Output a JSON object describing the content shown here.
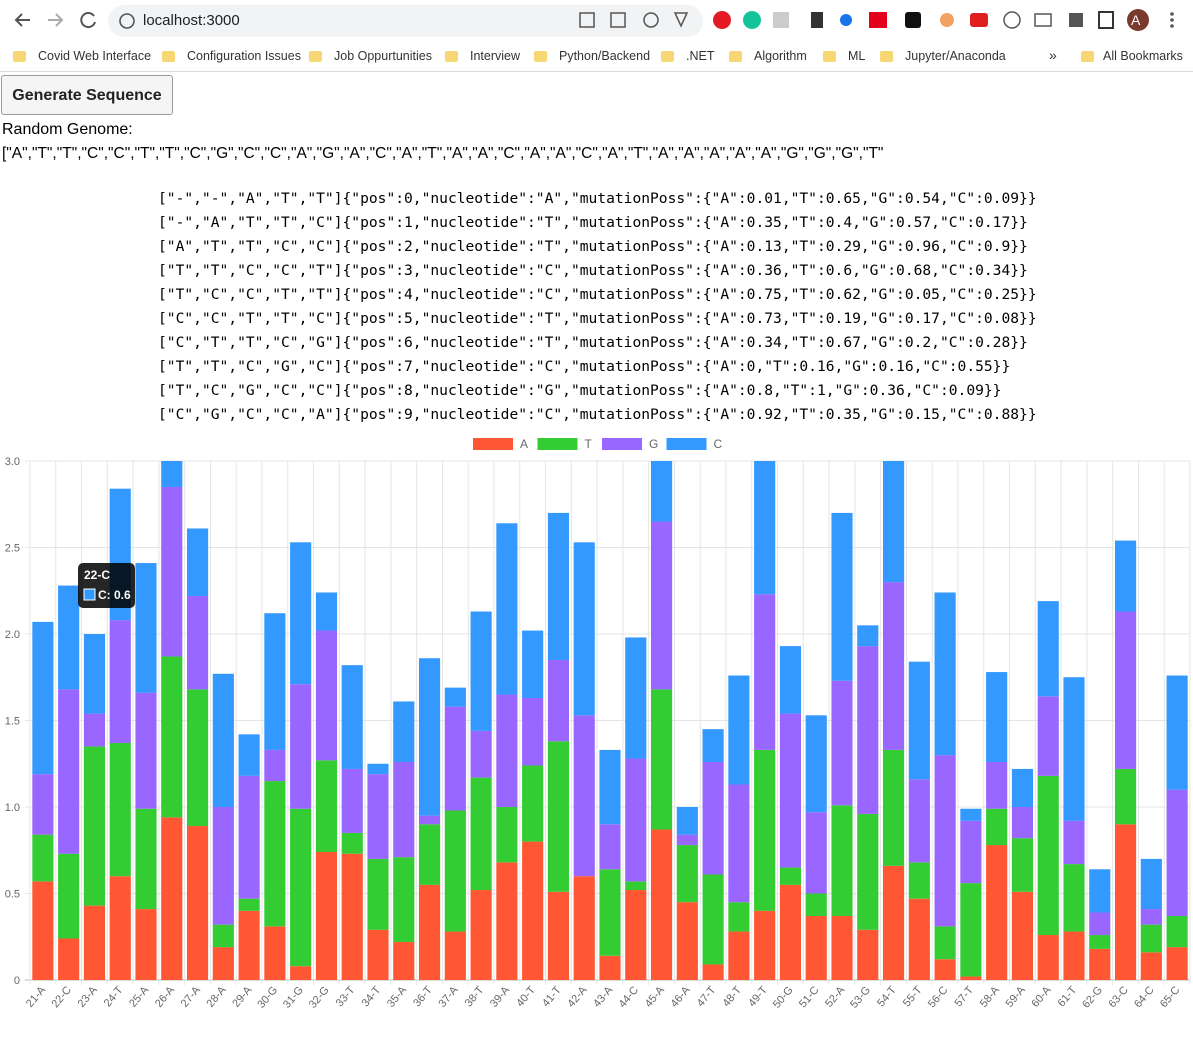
{
  "browser": {
    "url": "localhost:3000",
    "profile": "A",
    "bookmarks": [
      "Covid Web Interface",
      "Configuration Issues",
      "Job Oppurtunities",
      "Interview",
      "Python/Backend",
      ".NET",
      "Algorithm",
      "ML",
      "Jupyter/Anaconda"
    ],
    "more": "»",
    "all_bookmarks": "All Bookmarks"
  },
  "page": {
    "button": "Generate Sequence",
    "genome_label": "Random Genome:",
    "genome": "[\"A\",\"T\",\"T\",\"C\",\"C\",\"T\",\"T\",\"C\",\"G\",\"C\",\"C\",\"A\",\"G\",\"A\",\"C\",\"A\",\"T\",\"A\",\"A\",\"C\",\"A\",\"A\",\"C\",\"A\",\"T\",\"A\",\"A\",\"A\",\"A\",\"A\",\"G\",\"G\",\"G\",\"T\"",
    "lines": [
      "[\"-\",\"-\",\"A\",\"T\",\"T\"]{\"pos\":0,\"nucleotide\":\"A\",\"mutationPoss\":{\"A\":0.01,\"T\":0.65,\"G\":0.54,\"C\":0.09}}",
      "[\"-\",\"A\",\"T\",\"T\",\"C\"]{\"pos\":1,\"nucleotide\":\"T\",\"mutationPoss\":{\"A\":0.35,\"T\":0.4,\"G\":0.57,\"C\":0.17}}",
      "[\"A\",\"T\",\"T\",\"C\",\"C\"]{\"pos\":2,\"nucleotide\":\"T\",\"mutationPoss\":{\"A\":0.13,\"T\":0.29,\"G\":0.96,\"C\":0.9}}",
      "[\"T\",\"T\",\"C\",\"C\",\"T\"]{\"pos\":3,\"nucleotide\":\"C\",\"mutationPoss\":{\"A\":0.36,\"T\":0.6,\"G\":0.68,\"C\":0.34}}",
      "[\"T\",\"C\",\"C\",\"T\",\"T\"]{\"pos\":4,\"nucleotide\":\"C\",\"mutationPoss\":{\"A\":0.75,\"T\":0.62,\"G\":0.05,\"C\":0.25}}",
      "[\"C\",\"C\",\"T\",\"T\",\"C\"]{\"pos\":5,\"nucleotide\":\"T\",\"mutationPoss\":{\"A\":0.73,\"T\":0.19,\"G\":0.17,\"C\":0.08}}",
      "[\"C\",\"T\",\"T\",\"C\",\"G\"]{\"pos\":6,\"nucleotide\":\"T\",\"mutationPoss\":{\"A\":0.34,\"T\":0.67,\"G\":0.2,\"C\":0.28}}",
      "[\"T\",\"T\",\"C\",\"G\",\"C\"]{\"pos\":7,\"nucleotide\":\"C\",\"mutationPoss\":{\"A\":0,\"T\":0.16,\"G\":0.16,\"C\":0.55}}",
      "[\"T\",\"C\",\"G\",\"C\",\"C\"]{\"pos\":8,\"nucleotide\":\"G\",\"mutationPoss\":{\"A\":0.8,\"T\":1,\"G\":0.36,\"C\":0.09}}",
      "[\"C\",\"G\",\"C\",\"C\",\"A\"]{\"pos\":9,\"nucleotide\":\"C\",\"mutationPoss\":{\"A\":0.92,\"T\":0.35,\"G\":0.15,\"C\":0.88}}"
    ]
  },
  "chart_data": {
    "type": "bar",
    "stacked": true,
    "grid": true,
    "legend": "top",
    "categories": [
      "21-A",
      "22-C",
      "23-A",
      "24-T",
      "25-A",
      "26-A",
      "27-A",
      "28-A",
      "29-A",
      "30-G",
      "31-G",
      "32-G",
      "33-T",
      "34-T",
      "35-A",
      "36-T",
      "37-A",
      "38-T",
      "39-A",
      "40-T",
      "41-T",
      "42-A",
      "43-A",
      "44-C",
      "45-A",
      "46-A",
      "47-T",
      "48-T",
      "49-T",
      "50-G",
      "51-C",
      "52-A",
      "53-G",
      "54-T",
      "55-T",
      "56-C",
      "57-T",
      "58-A",
      "59-A",
      "60-A",
      "61-T",
      "62-G",
      "63-C",
      "64-C",
      "65-C"
    ],
    "series": [
      {
        "name": "A",
        "color": "#ff5733",
        "values": [
          0.57,
          0.24,
          0.43,
          0.6,
          0.41,
          0.94,
          0.89,
          0.19,
          0.4,
          0.31,
          0.08,
          0.74,
          0.73,
          0.29,
          0.22,
          0.55,
          0.28,
          0.52,
          0.68,
          0.8,
          0.51,
          0.6,
          0.14,
          0.52,
          0.87,
          0.45,
          0.09,
          0.28,
          0.4,
          0.55,
          0.37,
          0.37,
          0.29,
          0.66,
          0.47,
          0.12,
          0.02,
          0.78,
          0.51,
          0.26,
          0.28,
          0.18,
          0.9,
          0.16,
          0.19
        ]
      },
      {
        "name": "T",
        "color": "#33cc33",
        "values": [
          0.27,
          0.49,
          0.92,
          0.77,
          0.58,
          0.93,
          0.79,
          0.13,
          0.07,
          0.84,
          0.91,
          0.53,
          0.12,
          0.41,
          0.49,
          0.35,
          0.7,
          0.65,
          0.32,
          0.44,
          0.87,
          0,
          0.5,
          0.05,
          0.81,
          0.33,
          0.52,
          0.17,
          0.93,
          0.1,
          0.13,
          0.64,
          0.67,
          0.67,
          0.21,
          0.19,
          0.54,
          0.21,
          0.31,
          0.92,
          0.39,
          0.08,
          0.32,
          0.16,
          0.18
        ]
      },
      {
        "name": "G",
        "color": "#9966ff",
        "values": [
          0.35,
          0.95,
          0.19,
          0.71,
          0.67,
          0.98,
          0.54,
          0.68,
          0.71,
          0.18,
          0.72,
          0.75,
          0.37,
          0.49,
          0.55,
          0.05,
          0.6,
          0.27,
          0.65,
          0.39,
          0.47,
          0.93,
          0.26,
          0.71,
          0.97,
          0.06,
          0.65,
          0.68,
          0.9,
          0.89,
          0.47,
          0.72,
          0.97,
          0.97,
          0.48,
          0.99,
          0.36,
          0.27,
          0.18,
          0.46,
          0.25,
          0.13,
          0.91,
          0.09,
          0.73
        ]
      },
      {
        "name": "C",
        "color": "#3399ff",
        "values": [
          0.88,
          0.6,
          0.46,
          0.76,
          0.75,
          0.3,
          0.39,
          0.77,
          0.24,
          0.79,
          0.82,
          0.22,
          0.6,
          0.06,
          0.35,
          0.91,
          0.11,
          0.69,
          0.99,
          0.39,
          0.85,
          1.0,
          0.43,
          0.7,
          0.4,
          0.16,
          0.19,
          0.63,
          0.85,
          0.39,
          0.56,
          0.97,
          0.12,
          0.75,
          0.68,
          0.94,
          0.07,
          0.52,
          0.22,
          0.55,
          0.83,
          0.25,
          0.41,
          0.29,
          0.66
        ]
      }
    ],
    "ylim": [
      0,
      3
    ],
    "yticks": [
      0,
      {
        "value": 0.5,
        "label": "0.5"
      },
      {
        "value": 1,
        "label": "1.0"
      },
      {
        "value": 1.5,
        "label": "1.5"
      },
      {
        "value": 2,
        "label": "2.0"
      },
      {
        "value": 2.5,
        "label": "2.5"
      },
      {
        "value": 3,
        "label": "3.0"
      }
    ],
    "tooltip": {
      "title": "22-C",
      "text": "C: 0.6"
    }
  }
}
